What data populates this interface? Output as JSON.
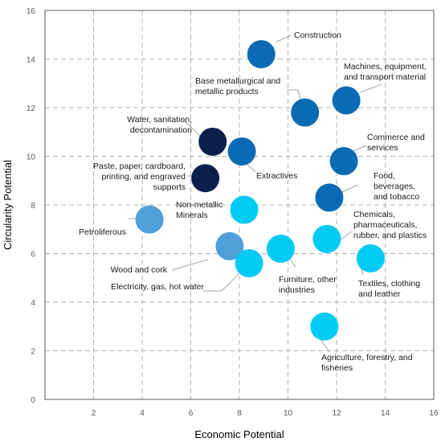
{
  "chart_data": {
    "type": "scatter",
    "title": "",
    "xlabel": "Economic Potential",
    "ylabel": "Circularity Potential",
    "xlim": [
      0,
      16
    ],
    "ylim": [
      0,
      16
    ],
    "x_ticks": [
      2,
      4,
      6,
      8,
      10,
      12,
      14,
      16
    ],
    "y_ticks": [
      0,
      2,
      4,
      6,
      8,
      10,
      12,
      14,
      16
    ],
    "grid": true,
    "legend": "none",
    "colors": {
      "navy": "#0b1f4d",
      "blue": "#0a6ab4",
      "mid_blue": "#4f9fd8",
      "cyan": "#00cbf5"
    },
    "points": [
      {
        "label": [
          "Construction"
        ],
        "x": 8.9,
        "y": 14.2,
        "color": "blue"
      },
      {
        "label": [
          "Base metallurgical and",
          "metallic products"
        ],
        "x": 10.7,
        "y": 11.8,
        "color": "blue"
      },
      {
        "label": [
          "Machines, equipment,",
          "and transport material"
        ],
        "x": 12.4,
        "y": 12.3,
        "color": "blue"
      },
      {
        "label": [
          "Water, sanitation,",
          "decontamination"
        ],
        "x": 6.9,
        "y": 10.6,
        "color": "navy"
      },
      {
        "label": [
          "Extractives"
        ],
        "x": 8.1,
        "y": 10.2,
        "color": "blue"
      },
      {
        "label": [
          "Paste, paper, cardboard,",
          "printing, and engraved",
          "supports"
        ],
        "x": 6.6,
        "y": 9.1,
        "color": "navy"
      },
      {
        "label": [
          "Commerce and",
          "services"
        ],
        "x": 12.3,
        "y": 9.8,
        "color": "blue"
      },
      {
        "label": [
          "Food,",
          "beverages,",
          "and tobacco"
        ],
        "x": 11.7,
        "y": 8.3,
        "color": "blue"
      },
      {
        "label": [
          "Petroliferous"
        ],
        "x": 4.3,
        "y": 7.4,
        "color": "mid_blue"
      },
      {
        "label": [
          "Non-metallic",
          "Minerals"
        ],
        "x": 8.2,
        "y": 7.8,
        "color": "cyan"
      },
      {
        "label": [
          "Chemicals,",
          "pharmaceuticals,",
          "rubber, and plastics"
        ],
        "x": 11.6,
        "y": 6.6,
        "color": "cyan"
      },
      {
        "label": [
          "Wood and cork"
        ],
        "x": 7.6,
        "y": 6.3,
        "color": "mid_blue"
      },
      {
        "label": [
          "Electricity, gas, hot water"
        ],
        "x": 8.4,
        "y": 5.6,
        "color": "cyan"
      },
      {
        "label": [
          "Furniture, other",
          "industries"
        ],
        "x": 9.7,
        "y": 6.2,
        "color": "cyan"
      },
      {
        "label": [
          "Textiles, clothing",
          "and leather"
        ],
        "x": 13.4,
        "y": 5.8,
        "color": "cyan"
      },
      {
        "label": [
          "Agriculture, forestry, and",
          "fisheries"
        ],
        "x": 11.5,
        "y": 3.0,
        "color": "cyan"
      }
    ]
  }
}
